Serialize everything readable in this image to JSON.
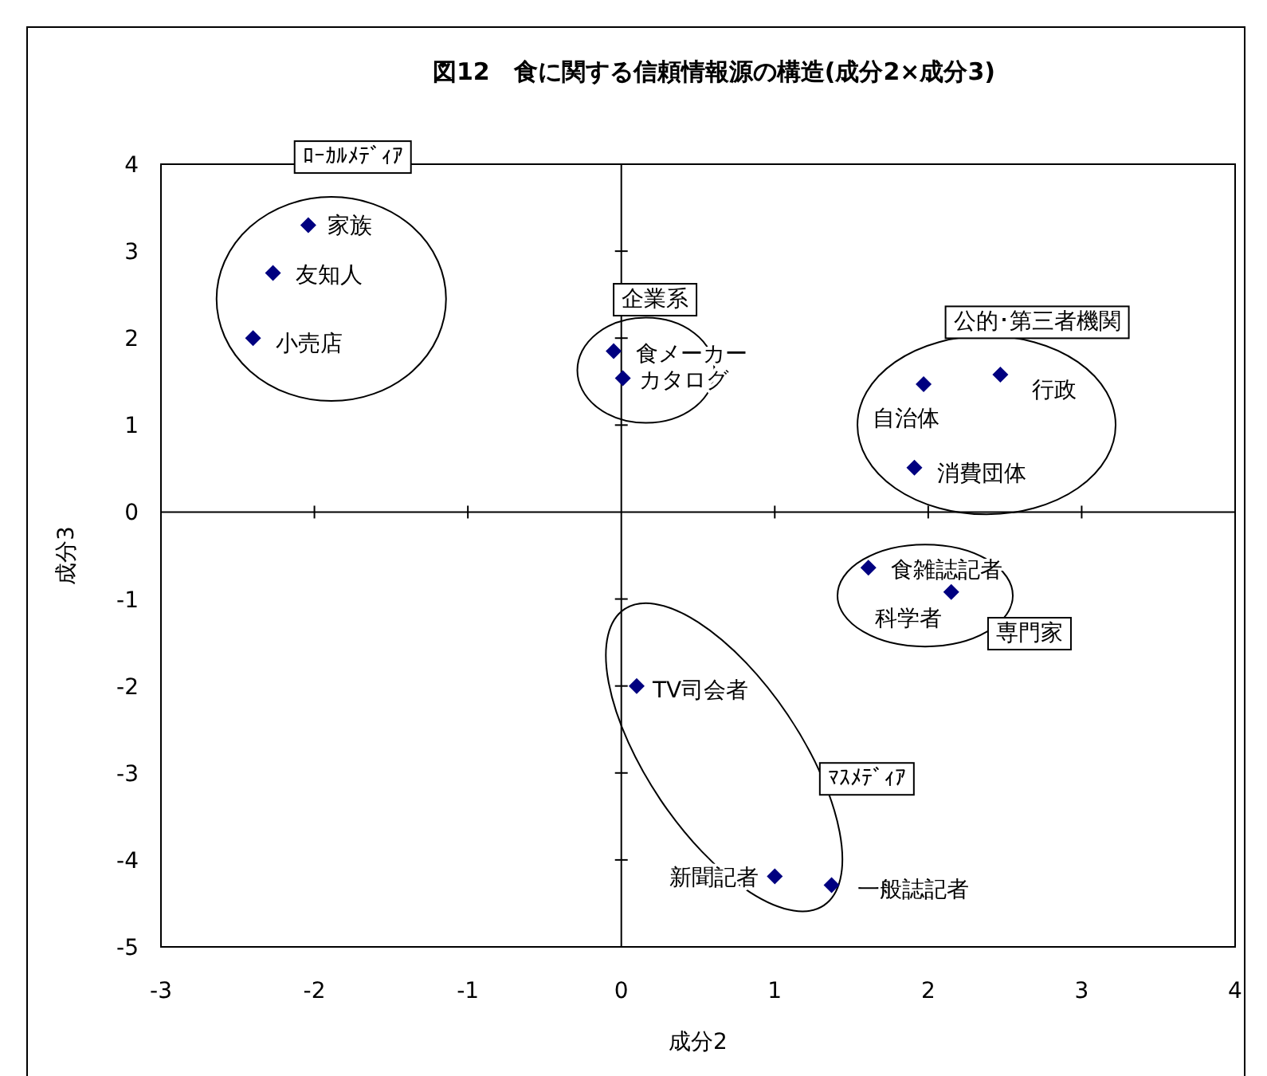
{
  "chart_data": {
    "type": "scatter",
    "title": "図12　食に関する信頼情報源の構造(成分2×成分3)",
    "xlabel": "成分2",
    "ylabel": "成分3",
    "xlim": [
      -3,
      4
    ],
    "xticks": [
      -3,
      -2,
      -1,
      0,
      1,
      2,
      3,
      4
    ],
    "ylim": [
      -5,
      4
    ],
    "yticks": [
      -5,
      -4,
      -3,
      -2,
      -1,
      0,
      1,
      2,
      3,
      4
    ],
    "marker": "diamond",
    "annotations": [
      "ﾛｰｶﾙﾒﾃﾞｨｱ",
      "企業系",
      "公的･第三者機関",
      "専門家",
      "ﾏｽﾒﾃﾞｨｱ"
    ],
    "series": [
      {
        "name": "家族",
        "color": "#000080",
        "x": [
          -2.04
        ],
        "values": [
          3.3
        ]
      },
      {
        "name": "友知人",
        "color": "#000080",
        "x": [
          -2.27
        ],
        "values": [
          2.75
        ]
      },
      {
        "name": "小売店",
        "color": "#000080",
        "x": [
          -2.4
        ],
        "values": [
          2.0
        ]
      },
      {
        "name": "食メーカー",
        "color": "#000080",
        "x": [
          -0.05
        ],
        "values": [
          1.85
        ]
      },
      {
        "name": "カタログ",
        "color": "#000080",
        "x": [
          0.01
        ],
        "values": [
          1.54
        ]
      },
      {
        "name": "自治体",
        "color": "#000080",
        "x": [
          1.97
        ],
        "values": [
          1.47
        ]
      },
      {
        "name": "行政",
        "color": "#000080",
        "x": [
          2.47
        ],
        "values": [
          1.58
        ]
      },
      {
        "name": "消費団体",
        "color": "#000080",
        "x": [
          1.91
        ],
        "values": [
          0.51
        ]
      },
      {
        "name": "食雑誌記者",
        "color": "#000080",
        "x": [
          1.61
        ],
        "values": [
          -0.64
        ]
      },
      {
        "name": "科学者",
        "color": "#000080",
        "x": [
          2.15
        ],
        "values": [
          -0.92
        ]
      },
      {
        "name": "TV司会者",
        "color": "#000080",
        "x": [
          0.1
        ],
        "values": [
          -2.0
        ]
      },
      {
        "name": "新聞記者",
        "color": "#000080",
        "x": [
          1.0
        ],
        "values": [
          -4.19
        ]
      },
      {
        "name": "一般誌記者",
        "color": "#000080",
        "x": [
          1.37
        ],
        "values": [
          -4.29
        ]
      }
    ]
  }
}
